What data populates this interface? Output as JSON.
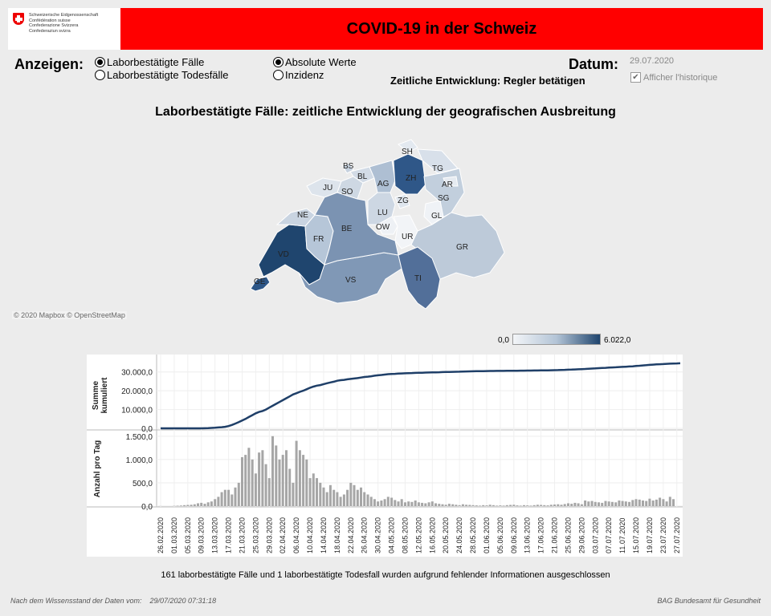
{
  "header": {
    "title": "COVID-19 in der Schweiz",
    "logo_lines": [
      "Schweizerische Eidgenossenschaft",
      "Confédération suisse",
      "Confederazione Svizzera",
      "Confederaziun svizra"
    ]
  },
  "controls": {
    "anzeigen_label": "Anzeigen:",
    "type_options": [
      "Laborbestätigte Fälle",
      "Laborbestätigte Todesfälle"
    ],
    "value_options": [
      "Absolute Werte",
      "Inzidenz"
    ],
    "datum_label": "Datum:",
    "datum_value": "29.07.2020",
    "slider_hint": "Zeitliche Entwicklung: Regler betätigen",
    "history_label": "Afficher l'historique",
    "history_checked": "✔"
  },
  "map": {
    "title": "Laborbestätigte Fälle: zeitliche Entwicklung der geografischen Ausbreitung",
    "copyright": "© 2020 Mapbox © OpenStreetMap",
    "legend_min": "0,0",
    "legend_max": "6.022,0",
    "cantons": [
      {
        "code": "GE",
        "color": "#2d5687"
      },
      {
        "code": "VD",
        "color": "#1f456e"
      },
      {
        "code": "VS",
        "color": "#8098b6"
      },
      {
        "code": "FR",
        "color": "#b6c6d8"
      },
      {
        "code": "NE",
        "color": "#c9d4e1"
      },
      {
        "code": "JU",
        "color": "#dde4ec"
      },
      {
        "code": "BE",
        "color": "#7b93b2"
      },
      {
        "code": "SO",
        "color": "#ced8e3"
      },
      {
        "code": "BS",
        "color": "#c7d2df"
      },
      {
        "code": "BL",
        "color": "#d2dbe6"
      },
      {
        "code": "AG",
        "color": "#aebfd3"
      },
      {
        "code": "LU",
        "color": "#cdd7e3"
      },
      {
        "code": "OW",
        "color": "#eef1f5"
      },
      {
        "code": "UR",
        "color": "#f2f4f7"
      },
      {
        "code": "ZG",
        "color": "#dfe6ee"
      },
      {
        "code": "ZH",
        "color": "#2f5788"
      },
      {
        "code": "SH",
        "color": "#e3e9f0"
      },
      {
        "code": "TG",
        "color": "#d8e0ea"
      },
      {
        "code": "SG",
        "color": "#c2cfdd"
      },
      {
        "code": "AR",
        "color": "#e6ebf1"
      },
      {
        "code": "GL",
        "color": "#eff2f6"
      },
      {
        "code": "GR",
        "color": "#bdcad9"
      },
      {
        "code": "TI",
        "color": "#526f99"
      }
    ]
  },
  "chart_data": {
    "type": "line+bar",
    "series": [
      {
        "name": "Summe kumuliert",
        "ylabel": "Summe kumuliert",
        "yticks": [
          "30.000,0",
          "20.000,0",
          "10.000,0",
          "0,0"
        ],
        "ylim": [
          0,
          35000
        ],
        "color": "#1f3f68",
        "values": [
          0,
          0,
          0,
          0,
          0,
          0,
          0,
          0,
          0,
          0,
          0,
          0,
          0,
          50,
          100,
          200,
          300,
          450,
          600,
          800,
          1200,
          1800,
          2500,
          3300,
          4200,
          5000,
          6000,
          7000,
          8000,
          8700,
          9200,
          10000,
          11000,
          12000,
          13000,
          14000,
          15000,
          16000,
          17000,
          18000,
          18700,
          19400,
          20000,
          20800,
          21600,
          22200,
          22700,
          23000,
          23500,
          24000,
          24400,
          24800,
          25300,
          25600,
          25800,
          26100,
          26300,
          26500,
          26700,
          27000,
          27300,
          27500,
          27700,
          28000,
          28200,
          28400,
          28600,
          28800,
          28900,
          29000,
          29100,
          29200,
          29300,
          29350,
          29400,
          29500,
          29550,
          29600,
          29650,
          29700,
          29750,
          29800,
          29850,
          29900,
          29950,
          30000,
          30050,
          30100,
          30150,
          30200,
          30250,
          30300,
          30350,
          30400,
          30420,
          30450,
          30480,
          30500,
          30520,
          30540,
          30560,
          30580,
          30600,
          30620,
          30640,
          30660,
          30680,
          30700,
          30720,
          30740,
          30760,
          30780,
          30800,
          30830,
          30860,
          30900,
          30950,
          31000,
          31060,
          31120,
          31180,
          31250,
          31330,
          31400,
          31500,
          31600,
          31700,
          31800,
          31900,
          32000,
          32100,
          32200,
          32300,
          32400,
          32500,
          32600,
          32700,
          32800,
          32900,
          33000,
          33150,
          33300,
          33450,
          33600,
          33750,
          33900,
          34000,
          34100,
          34200,
          34300,
          34400,
          34500,
          34550,
          34600
        ]
      },
      {
        "name": "Anzahl pro Tag",
        "ylabel": "Anzahl pro Tag",
        "yticks": [
          "1.500,0",
          "1.000,0",
          "500,0",
          "0,0"
        ],
        "ylim": [
          0,
          1600
        ],
        "color": "#a6a6a6",
        "values": [
          1,
          0,
          0,
          0,
          5,
          8,
          12,
          20,
          25,
          30,
          40,
          60,
          70,
          50,
          80,
          100,
          150,
          200,
          300,
          350,
          350,
          250,
          400,
          500,
          1050,
          1100,
          1250,
          1000,
          700,
          1150,
          1200,
          900,
          600,
          1500,
          1300,
          1000,
          1100,
          1200,
          800,
          500,
          1400,
          1200,
          1100,
          1000,
          600,
          700,
          600,
          500,
          400,
          300,
          450,
          350,
          300,
          200,
          250,
          350,
          500,
          450,
          350,
          400,
          300,
          250,
          200,
          150,
          100,
          120,
          150,
          200,
          180,
          130,
          100,
          150,
          80,
          100,
          90,
          120,
          80,
          70,
          60,
          80,
          100,
          60,
          50,
          40,
          30,
          50,
          40,
          30,
          20,
          40,
          30,
          25,
          20,
          15,
          10,
          20,
          15,
          30,
          20,
          10,
          15,
          10,
          20,
          25,
          30,
          15,
          10,
          20,
          15,
          10,
          20,
          30,
          25,
          20,
          15,
          30,
          35,
          40,
          30,
          45,
          60,
          50,
          70,
          60,
          40,
          120,
          100,
          110,
          90,
          80,
          70,
          110,
          100,
          90,
          80,
          120,
          110,
          100,
          90,
          130,
          150,
          140,
          120,
          110,
          160,
          120,
          140,
          180,
          150,
          100,
          200,
          150
        ]
      }
    ],
    "x_tick_labels": [
      "26.02.2020",
      "01.03.2020",
      "05.03.2020",
      "09.03.2020",
      "13.03.2020",
      "17.03.2020",
      "21.03.2020",
      "25.03.2020",
      "29.03.2020",
      "02.04.2020",
      "06.04.2020",
      "10.04.2020",
      "14.04.2020",
      "18.04.2020",
      "22.04.2020",
      "26.04.2020",
      "30.04.2020",
      "04.05.2020",
      "08.05.2020",
      "12.05.2020",
      "16.05.2020",
      "20.05.2020",
      "24.05.2020",
      "28.05.2020",
      "01.06.2020",
      "05.06.2020",
      "09.06.2020",
      "13.06.2020",
      "17.06.2020",
      "21.06.2020",
      "25.06.2020",
      "29.06.2020",
      "03.07.2020",
      "07.07.2020",
      "11.07.2020",
      "15.07.2020",
      "19.07.2020",
      "23.07.2020",
      "27.07.2020"
    ]
  },
  "notes": {
    "excluded": "161 laborbestätigte Fälle und 1 laborbestätigte Todesfall wurden aufgrund fehlender Informationen ausgeschlossen",
    "footer_left": "Nach dem Wissensstand der Daten vom:    29/07/2020 07:31:18",
    "footer_right": "BAG Bundesamt für Gesundheit"
  }
}
